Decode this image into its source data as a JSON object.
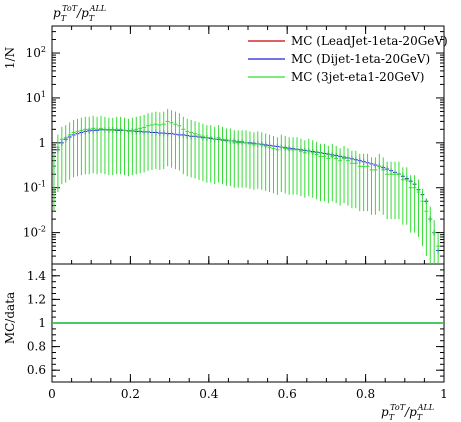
{
  "chart_data": {
    "type": "line",
    "title": {
      "base": "p",
      "sub": "T",
      "sup": "ToT",
      "slash": "/",
      "base2": "p",
      "sub2": "T",
      "sup2": "ALL"
    },
    "xlabel": {
      "base": "p",
      "sub": "T",
      "sup": "ToT",
      "slash": "/",
      "base2": "p",
      "sub2": "T",
      "sup2": "ALL"
    },
    "main_panel": {
      "ylabel": "1/N",
      "yscale": "log",
      "xlim": [
        0,
        1
      ],
      "ylim": [
        0.002,
        400
      ],
      "y_ticks": [
        {
          "value": 0.01,
          "base": "10",
          "exp": "-2"
        },
        {
          "value": 0.1,
          "base": "10",
          "exp": "-1"
        },
        {
          "value": 1,
          "base": "1",
          "exp": ""
        },
        {
          "value": 10,
          "base": "10",
          "exp": "1"
        },
        {
          "value": 100,
          "base": "10",
          "exp": "2"
        }
      ]
    },
    "ratio_panel": {
      "ylabel": "MC/data",
      "ylim": [
        0.5,
        1.5
      ],
      "y_ticks": [
        "0.6",
        "0.8",
        "1",
        "1.2",
        "1.4"
      ],
      "y_tick_values": [
        0.6,
        0.8,
        1.0,
        1.2,
        1.4
      ]
    },
    "x_ticks": [
      "0",
      "0.2",
      "0.4",
      "0.6",
      "0.8",
      "1"
    ],
    "x_tick_values": [
      0,
      0.2,
      0.4,
      0.6,
      0.8,
      1.0
    ],
    "legend_position": "top-right",
    "series": [
      {
        "name": "MC (LeadJet-1eta-20GeV)",
        "color": "#cc0000",
        "x": [
          0.5
        ],
        "y": [
          null
        ]
      },
      {
        "name": "MC (Dijet-1eta-20GeV)",
        "color": "#2222dd",
        "x": [
          0.005,
          0.015,
          0.025,
          0.035,
          0.045,
          0.055,
          0.065,
          0.075,
          0.085,
          0.095,
          0.105,
          0.115,
          0.125,
          0.135,
          0.145,
          0.155,
          0.165,
          0.175,
          0.185,
          0.195,
          0.205,
          0.215,
          0.225,
          0.235,
          0.245,
          0.255,
          0.265,
          0.275,
          0.285,
          0.295,
          0.305,
          0.315,
          0.325,
          0.335,
          0.345,
          0.355,
          0.365,
          0.375,
          0.385,
          0.395,
          0.405,
          0.415,
          0.425,
          0.435,
          0.445,
          0.455,
          0.465,
          0.475,
          0.485,
          0.495,
          0.505,
          0.515,
          0.525,
          0.535,
          0.545,
          0.555,
          0.565,
          0.575,
          0.585,
          0.595,
          0.605,
          0.615,
          0.625,
          0.635,
          0.645,
          0.655,
          0.665,
          0.675,
          0.685,
          0.695,
          0.705,
          0.715,
          0.725,
          0.735,
          0.745,
          0.755,
          0.765,
          0.775,
          0.785,
          0.795,
          0.805,
          0.815,
          0.825,
          0.835,
          0.845,
          0.855,
          0.865,
          0.875,
          0.885,
          0.895,
          0.905,
          0.915,
          0.925,
          0.935,
          0.945,
          0.955,
          0.965,
          0.975,
          0.985
        ],
        "y": [
          0.3,
          0.7,
          1.0,
          1.2,
          1.35,
          1.5,
          1.6,
          1.7,
          1.8,
          1.85,
          1.9,
          1.9,
          1.95,
          1.95,
          1.95,
          1.95,
          1.9,
          1.9,
          1.9,
          1.85,
          1.85,
          1.8,
          1.8,
          1.75,
          1.75,
          1.7,
          1.7,
          1.65,
          1.65,
          1.6,
          1.6,
          1.55,
          1.5,
          1.5,
          1.45,
          1.4,
          1.4,
          1.35,
          1.3,
          1.3,
          1.25,
          1.2,
          1.2,
          1.15,
          1.15,
          1.1,
          1.1,
          1.05,
          1.05,
          1.0,
          1.0,
          0.98,
          0.95,
          0.93,
          0.9,
          0.88,
          0.85,
          0.83,
          0.8,
          0.78,
          0.76,
          0.74,
          0.72,
          0.7,
          0.68,
          0.66,
          0.64,
          0.62,
          0.6,
          0.58,
          0.56,
          0.54,
          0.52,
          0.5,
          0.48,
          0.46,
          0.44,
          0.42,
          0.4,
          0.38,
          0.36,
          0.34,
          0.32,
          0.3,
          0.28,
          0.26,
          0.24,
          0.22,
          0.2,
          0.18,
          0.16,
          0.14,
          0.12,
          0.09,
          0.07,
          0.05,
          0.02,
          0.01,
          0.004
        ]
      },
      {
        "name": "MC (3jet-eta1-20GeV)",
        "color": "#33dd33",
        "x": [
          0.005,
          0.015,
          0.025,
          0.035,
          0.045,
          0.055,
          0.065,
          0.075,
          0.085,
          0.095,
          0.105,
          0.115,
          0.125,
          0.135,
          0.145,
          0.155,
          0.165,
          0.175,
          0.185,
          0.195,
          0.205,
          0.215,
          0.225,
          0.235,
          0.245,
          0.255,
          0.265,
          0.275,
          0.285,
          0.295,
          0.305,
          0.315,
          0.325,
          0.335,
          0.345,
          0.355,
          0.365,
          0.375,
          0.385,
          0.395,
          0.405,
          0.415,
          0.425,
          0.435,
          0.445,
          0.455,
          0.465,
          0.475,
          0.485,
          0.495,
          0.505,
          0.515,
          0.525,
          0.535,
          0.545,
          0.555,
          0.565,
          0.575,
          0.585,
          0.595,
          0.605,
          0.615,
          0.625,
          0.635,
          0.645,
          0.655,
          0.665,
          0.675,
          0.685,
          0.695,
          0.705,
          0.715,
          0.725,
          0.735,
          0.745,
          0.755,
          0.765,
          0.775,
          0.785,
          0.795,
          0.805,
          0.815,
          0.825,
          0.835,
          0.845,
          0.855,
          0.865,
          0.875,
          0.885,
          0.895,
          0.905,
          0.915,
          0.925,
          0.935,
          0.945,
          0.955,
          0.965,
          0.975,
          0.985
        ],
        "y": [
          0.3,
          0.8,
          1.2,
          1.3,
          1.5,
          1.7,
          1.8,
          1.9,
          2.0,
          2.0,
          2.1,
          2.0,
          2.1,
          2.0,
          1.9,
          1.9,
          2.0,
          2.0,
          1.9,
          1.8,
          1.9,
          2.0,
          2.1,
          2.2,
          2.4,
          2.5,
          2.6,
          2.5,
          2.6,
          3.0,
          2.8,
          2.6,
          2.4,
          2.0,
          1.8,
          1.7,
          1.6,
          1.5,
          1.4,
          1.3,
          1.3,
          1.2,
          1.3,
          1.2,
          1.1,
          1.1,
          1.0,
          1.0,
          1.0,
          1.0,
          0.95,
          0.9,
          0.95,
          0.9,
          0.85,
          0.8,
          0.75,
          0.7,
          0.8,
          0.75,
          0.7,
          0.7,
          0.7,
          0.65,
          0.6,
          0.65,
          0.6,
          0.55,
          0.5,
          0.5,
          0.45,
          0.5,
          0.45,
          0.4,
          0.45,
          0.4,
          0.35,
          0.35,
          0.3,
          0.3,
          0.3,
          0.25,
          0.25,
          0.3,
          0.25,
          0.2,
          0.2,
          0.2,
          0.2,
          0.15,
          0.15,
          0.1,
          0.1,
          0.08,
          0.05,
          0.03,
          0.02,
          0.01,
          0.005
        ]
      }
    ],
    "ratio_series": [
      {
        "name": "MC (Dijet-1eta-20GeV)",
        "color": "#2222dd",
        "value": 1.0
      },
      {
        "name": "MC (3jet-eta1-20GeV)",
        "color": "#33dd33",
        "value": 1.0
      }
    ]
  }
}
